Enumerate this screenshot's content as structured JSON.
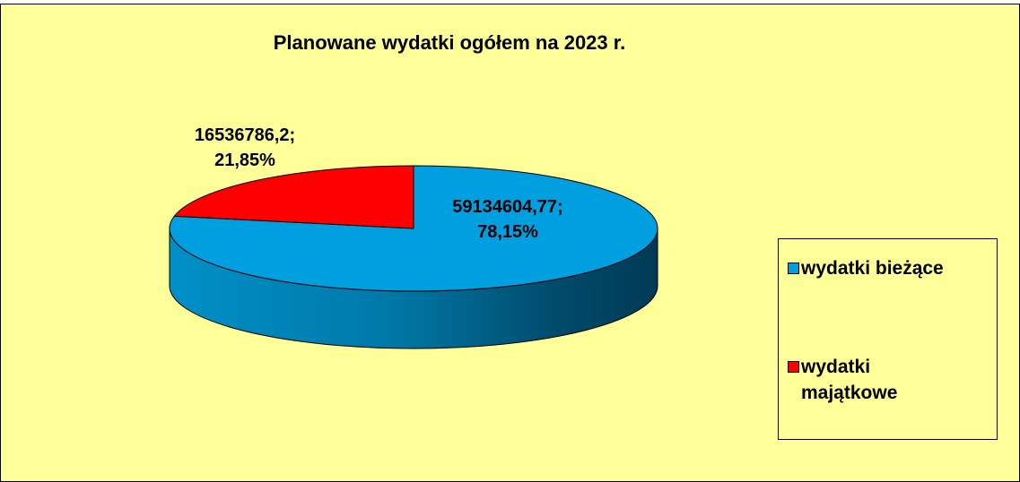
{
  "chart_data": {
    "type": "pie3d",
    "title": "Planowane wydatki ogółem na 2023 r.",
    "categories": [
      "wydatki bieżące",
      "wydatki majątkowe"
    ],
    "values": [
      59134604.77,
      16536786.2
    ],
    "value_labels": [
      "59134604,77;",
      "16536786,2;"
    ],
    "percents": [
      78.15,
      21.85
    ],
    "percent_labels": [
      "78,15%",
      "21,85%"
    ],
    "colors": [
      "#00a0e0",
      "#ff0000"
    ],
    "legend": "right"
  }
}
